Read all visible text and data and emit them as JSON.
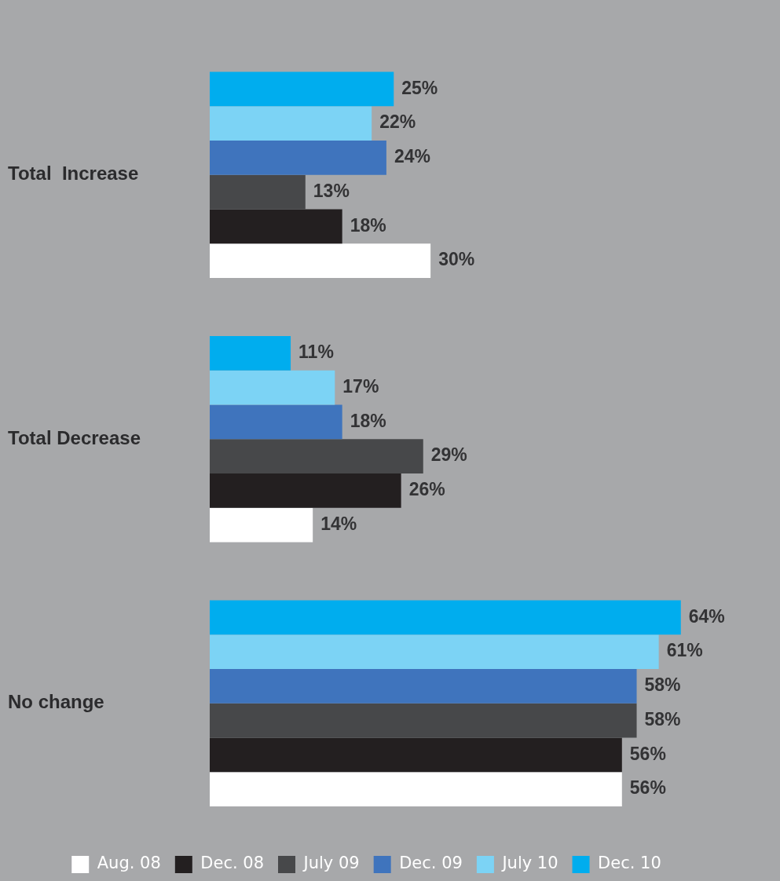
{
  "chart_data": {
    "type": "bar",
    "orientation": "horizontal",
    "categories": [
      "Total  Increase",
      "Total Decrease",
      "No change"
    ],
    "series": [
      {
        "name": "Aug. 08",
        "color": "#ffffff",
        "values": [
          30,
          14,
          56
        ],
        "value_labels": [
          "30%",
          "14%",
          "56%"
        ]
      },
      {
        "name": "Dec. 08",
        "color": "#231f20",
        "values": [
          18,
          26,
          56
        ],
        "value_labels": [
          "18%",
          "26%",
          "56%"
        ]
      },
      {
        "name": "July 09",
        "color": "#47484a",
        "values": [
          13,
          29,
          58
        ],
        "value_labels": [
          "13%",
          "29%",
          "58%"
        ]
      },
      {
        "name": "Dec. 09",
        "color": "#3f74bd",
        "values": [
          24,
          18,
          58
        ],
        "value_labels": [
          "24%",
          "18%",
          "58%"
        ]
      },
      {
        "name": "July 10",
        "color": "#7cd3f5",
        "values": [
          22,
          17,
          61
        ],
        "value_labels": [
          "22%",
          "17%",
          "61%"
        ]
      },
      {
        "name": "Dec. 10",
        "color": "#00adee",
        "values": [
          25,
          11,
          64
        ],
        "value_labels": [
          "25%",
          "11%",
          "64%"
        ]
      }
    ],
    "legend": "bottom"
  }
}
